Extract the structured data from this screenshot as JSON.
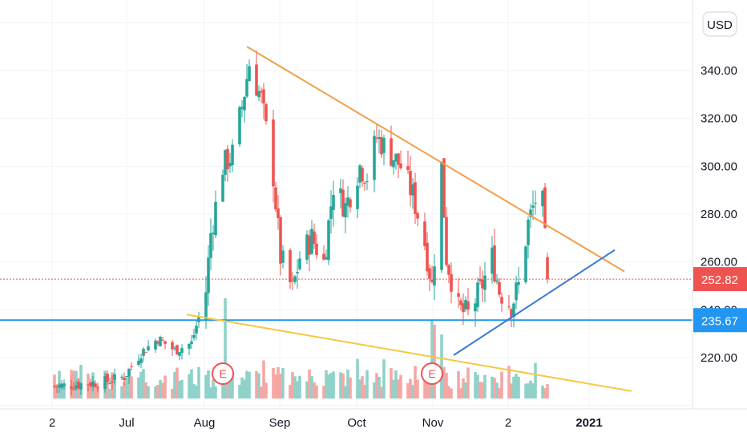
{
  "chart_data": {
    "type": "candlestick",
    "currency_label": "USD",
    "y_ticks": [
      "340.00",
      "320.00",
      "300.00",
      "280.00",
      "260.00",
      "240.00",
      "220.00"
    ],
    "y_tick_values": [
      340,
      320,
      300,
      280,
      260,
      240,
      220
    ],
    "x_ticks": [
      {
        "label": "2",
        "bold": false
      },
      {
        "label": "Jul",
        "bold": false
      },
      {
        "label": "Aug",
        "bold": false
      },
      {
        "label": "Sep",
        "bold": false
      },
      {
        "label": "Oct",
        "bold": false
      },
      {
        "label": "Nov",
        "bold": false
      },
      {
        "label": "2",
        "bold": false
      },
      {
        "label": "2021",
        "bold": true
      }
    ],
    "last_price": {
      "label": "252.82",
      "value": 252.82,
      "color": "#ef5350"
    },
    "horizontal_level": {
      "label": "235.67",
      "value": 235.67,
      "color": "#2196f3"
    },
    "earnings_markers": [
      {
        "label": "E"
      },
      {
        "label": "E"
      }
    ],
    "colors": {
      "up": "#26a69a",
      "down": "#ef5350",
      "volume_up": "#8fd2c9",
      "volume_down": "#f5a7a5"
    },
    "trendlines": [
      {
        "name": "upper-resistance",
        "color": "#f0a048",
        "from": {
          "date": "2020-08-20",
          "price": 350
        },
        "to": {
          "date": "2021-01-24",
          "price": 256
        }
      },
      {
        "name": "lower-support",
        "color": "#f5c842",
        "from": {
          "date": "2020-07-26",
          "price": 238
        },
        "to": {
          "date": "2021-01-27",
          "price": 206
        }
      },
      {
        "name": "rising-support",
        "color": "#3a7ad4",
        "from": {
          "date": "2020-11-14",
          "price": 221
        },
        "to": {
          "date": "2021-01-20",
          "price": 265
        }
      }
    ]
  }
}
